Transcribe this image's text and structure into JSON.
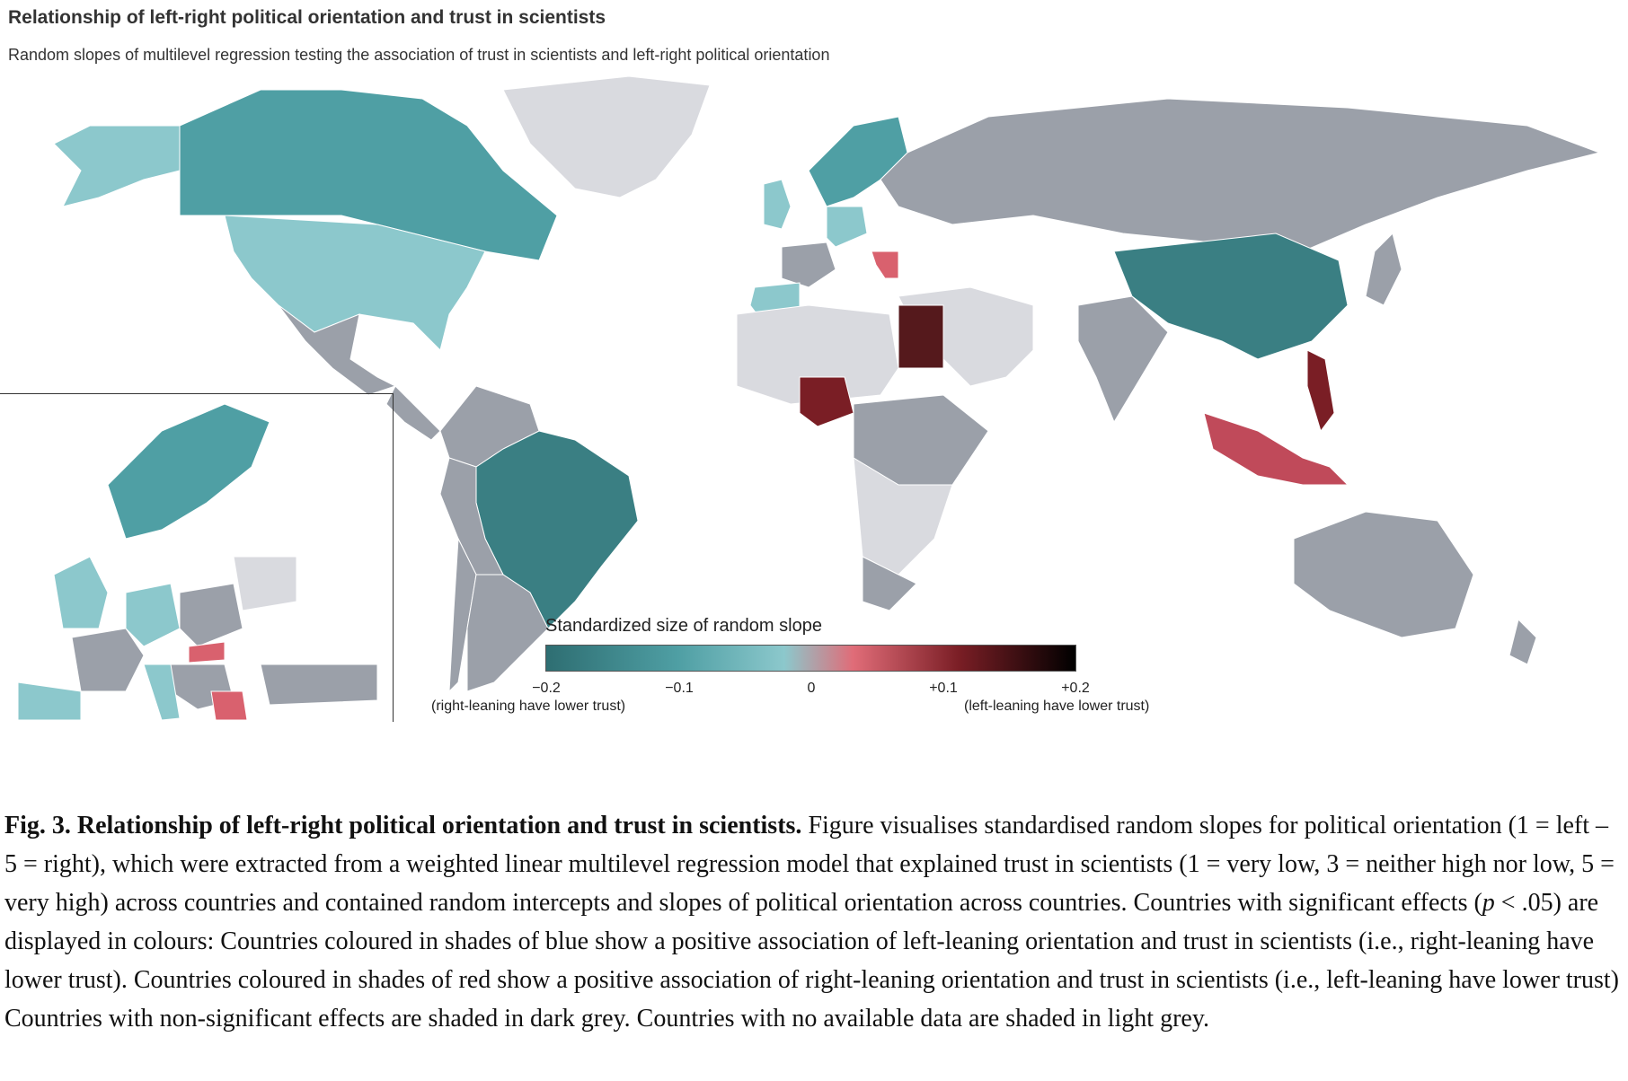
{
  "title": "Relationship of left-right political orientation and trust in scientists",
  "subtitle": "Random slopes of multilevel regression testing the association of trust in scientists and left-right political orientation",
  "colors": {
    "no_data": "#d9dadf",
    "non_significant": "#9ba0a9",
    "blue_strong": "#3a7f83",
    "blue_mid": "#4f9fa4",
    "blue_light": "#8cc8cc",
    "red_light": "#d9616e",
    "red_mid": "#c04a5a",
    "red_dark": "#7a1e25",
    "red_darkest": "#55191c",
    "ocean": "#ffffff"
  },
  "legend": {
    "title": "Standardized size of random slope",
    "ticks": [
      "−0.2",
      "−0.1",
      "0",
      "+0.1",
      "+0.2"
    ],
    "tick_values": [
      -0.2,
      -0.1,
      0,
      0.1,
      0.2
    ],
    "left_note": "(right-leaning have lower trust)",
    "right_note": "(left-leaning have lower trust)",
    "gradient": [
      "#2e6e72",
      "#4f9fa4",
      "#8cc8cc",
      "#e06c78",
      "#7a1e25",
      "#000000"
    ]
  },
  "map_regions": [
    {
      "name": "greenland",
      "fill": "no_data"
    },
    {
      "name": "alaska",
      "fill": "blue_light"
    },
    {
      "name": "canada",
      "fill": "blue_mid"
    },
    {
      "name": "usa",
      "fill": "blue_light"
    },
    {
      "name": "mexico",
      "fill": "non_significant"
    },
    {
      "name": "central-america",
      "fill": "non_significant"
    },
    {
      "name": "colombia-venezuela",
      "fill": "non_significant"
    },
    {
      "name": "brazil",
      "fill": "blue_strong"
    },
    {
      "name": "peru-bolivia",
      "fill": "non_significant"
    },
    {
      "name": "chile",
      "fill": "non_significant"
    },
    {
      "name": "argentina",
      "fill": "non_significant"
    },
    {
      "name": "uk",
      "fill": "blue_light"
    },
    {
      "name": "spain",
      "fill": "blue_light"
    },
    {
      "name": "france",
      "fill": "non_significant"
    },
    {
      "name": "germany",
      "fill": "blue_light"
    },
    {
      "name": "scandinavia",
      "fill": "blue_mid"
    },
    {
      "name": "greece",
      "fill": "red_light"
    },
    {
      "name": "russia",
      "fill": "non_significant"
    },
    {
      "name": "north-africa",
      "fill": "no_data"
    },
    {
      "name": "egypt",
      "fill": "red_darkest"
    },
    {
      "name": "nigeria",
      "fill": "red_dark"
    },
    {
      "name": "central-africa",
      "fill": "non_significant"
    },
    {
      "name": "southern-africa",
      "fill": "no_data"
    },
    {
      "name": "south-africa",
      "fill": "non_significant"
    },
    {
      "name": "middle-east",
      "fill": "no_data"
    },
    {
      "name": "india",
      "fill": "non_significant"
    },
    {
      "name": "china",
      "fill": "blue_strong"
    },
    {
      "name": "japan",
      "fill": "non_significant"
    },
    {
      "name": "philippines",
      "fill": "red_dark"
    },
    {
      "name": "indonesia",
      "fill": "red_mid"
    },
    {
      "name": "australia",
      "fill": "non_significant"
    },
    {
      "name": "new-zealand",
      "fill": "non_significant"
    }
  ],
  "caption": {
    "label": "Fig. 3. Relationship of left-right political orientation and trust in scientists.",
    "text_1": " Figure visualises standardised random slopes for political orientation (1 = left – 5 = right), which were extracted from a weighted linear multilevel regression model that explained trust in scientists (1 = very low, 3 = neither high nor low, 5 = very high) across countries and contained random intercepts and slopes of political orientation across countries. Countries with significant effects (",
    "p_symbol": "p",
    "text_2": " < .05) are displayed in colours: Countries coloured in shades of blue show a positive association of left-leaning orientation and trust in scientists (i.e., right-leaning have lower trust). Countries coloured in shades of red show a positive association of right-leaning orientation and trust in scientists (i.e., left-leaning have lower trust) Countries with non-significant effects are shaded in dark grey. Countries with no available data are shaded in light grey."
  }
}
